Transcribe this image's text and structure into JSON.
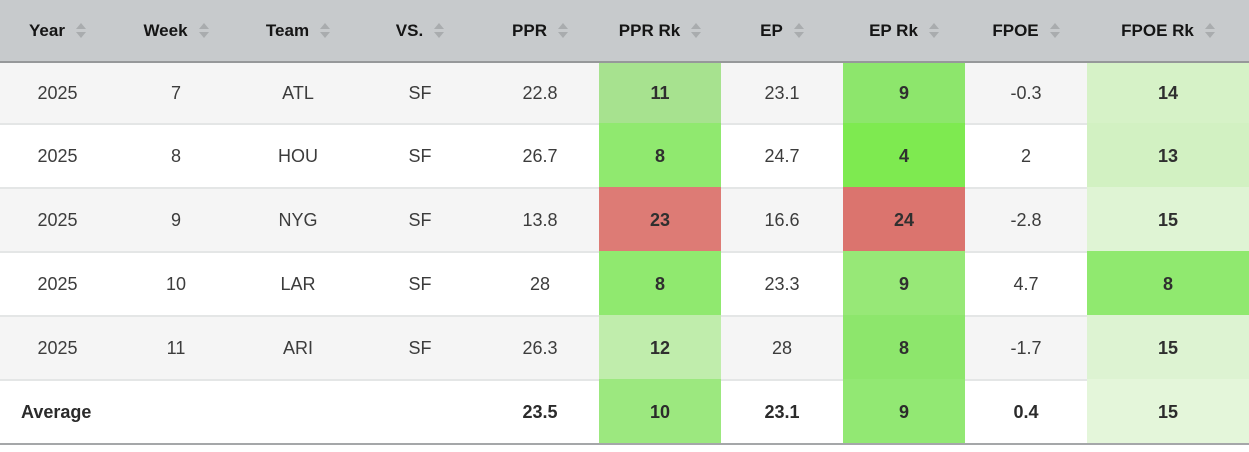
{
  "theme": {
    "header_bg": "#c7cacc",
    "header_border": "#96989a",
    "sort_arrow": "#a9acae",
    "row_alt_bg": "#f5f5f5",
    "row_bg": "#ffffff",
    "row_border": "#e4e6e6",
    "bottom_border": "#a5a7a9",
    "text": "#3c3c3c",
    "rank_good_strong": "#7eea50",
    "rank_good": "#90e96f",
    "rank_mild": "#d6f2c7",
    "rank_bad": "#dd7b75"
  },
  "table": {
    "columns": [
      {
        "key": "year",
        "label": "Year"
      },
      {
        "key": "week",
        "label": "Week"
      },
      {
        "key": "team",
        "label": "Team"
      },
      {
        "key": "vs",
        "label": "VS."
      },
      {
        "key": "ppr",
        "label": "PPR"
      },
      {
        "key": "ppr_rk",
        "label": "PPR Rk"
      },
      {
        "key": "ep",
        "label": "EP"
      },
      {
        "key": "ep_rk",
        "label": "EP Rk"
      },
      {
        "key": "fpoe",
        "label": "FPOE"
      },
      {
        "key": "fpoe_rk",
        "label": "FPOE Rk"
      }
    ],
    "rank_columns": [
      "ppr_rk",
      "ep_rk",
      "fpoe_rk"
    ],
    "rows": [
      {
        "year": "2025",
        "week": "7",
        "team": "ATL",
        "vs": "SF",
        "ppr": "22.8",
        "ppr_rk": "11",
        "ep": "23.1",
        "ep_rk": "9",
        "fpoe": "-0.3",
        "fpoe_rk": "14",
        "cell_colors": {
          "ppr_rk": "#a7e28f",
          "ep_rk": "#8de66c",
          "fpoe_rk": "#d6f2c7"
        }
      },
      {
        "year": "2025",
        "week": "8",
        "team": "HOU",
        "vs": "SF",
        "ppr": "26.7",
        "ppr_rk": "8",
        "ep": "24.7",
        "ep_rk": "4",
        "fpoe": "2",
        "fpoe_rk": "13",
        "cell_colors": {
          "ppr_rk": "#90e96f",
          "ep_rk": "#7eea50",
          "fpoe_rk": "#d2f1c2"
        }
      },
      {
        "year": "2025",
        "week": "9",
        "team": "NYG",
        "vs": "SF",
        "ppr": "13.8",
        "ppr_rk": "23",
        "ep": "16.6",
        "ep_rk": "24",
        "fpoe": "-2.8",
        "fpoe_rk": "15",
        "cell_colors": {
          "ppr_rk": "#dd7b75",
          "ep_rk": "#db746e",
          "fpoe_rk": "#dff4d4"
        }
      },
      {
        "year": "2025",
        "week": "10",
        "team": "LAR",
        "vs": "SF",
        "ppr": "28",
        "ppr_rk": "8",
        "ep": "23.3",
        "ep_rk": "9",
        "fpoe": "4.7",
        "fpoe_rk": "8",
        "cell_colors": {
          "ppr_rk": "#90e96f",
          "ep_rk": "#97e877",
          "fpoe_rk": "#90e96f"
        }
      },
      {
        "year": "2025",
        "week": "11",
        "team": "ARI",
        "vs": "SF",
        "ppr": "26.3",
        "ppr_rk": "12",
        "ep": "28",
        "ep_rk": "8",
        "fpoe": "-1.7",
        "fpoe_rk": "15",
        "cell_colors": {
          "ppr_rk": "#c0edac",
          "ep_rk": "#8de66c",
          "fpoe_rk": "#ddf3d2"
        }
      }
    ],
    "average_row": {
      "year": "Average",
      "week": "",
      "team": "",
      "vs": "",
      "ppr": "23.5",
      "ppr_rk": "10",
      "ep": "23.1",
      "ep_rk": "9",
      "fpoe": "0.4",
      "fpoe_rk": "15",
      "cell_colors": {
        "ppr_rk": "#9ce87f",
        "ep_rk": "#92e873",
        "fpoe_rk": "#e4f6da"
      }
    }
  }
}
